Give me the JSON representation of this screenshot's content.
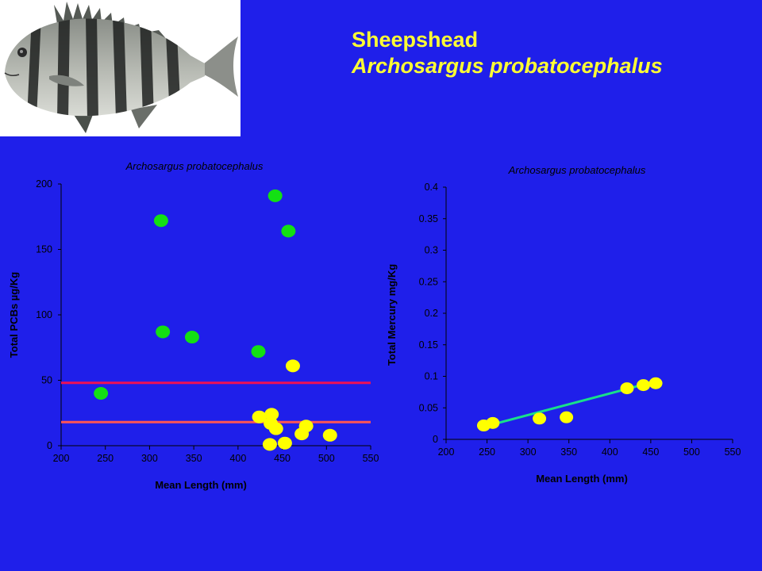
{
  "slide": {
    "title_common": "Sheepshead",
    "title_scientific": "Archosargus probatocephalus"
  },
  "colors": {
    "background": "#1f1fea",
    "title_text": "#ffff33",
    "green_point": "#13e013",
    "yellow_point": "#ffff00",
    "ref_line_upper": "#ee1155",
    "ref_line_lower": "#ff5555",
    "trend_line": "#19e08a"
  },
  "chart_data": [
    {
      "type": "scatter",
      "title": "Archosargus probatocephalus",
      "xlabel": "Mean Length (mm)",
      "ylabel": "Total PCBs µg/Kg",
      "xlim": [
        200,
        550
      ],
      "ylim": [
        0,
        200
      ],
      "xticks": [
        "200",
        "250",
        "300",
        "350",
        "400",
        "450",
        "500",
        "550"
      ],
      "yticks": [
        "0",
        "50",
        "100",
        "150",
        "200"
      ],
      "series": [
        {
          "color": "green",
          "points": [
            {
              "x": 245,
              "y": 40
            },
            {
              "x": 313,
              "y": 172
            },
            {
              "x": 315,
              "y": 87
            },
            {
              "x": 348,
              "y": 83
            },
            {
              "x": 423,
              "y": 72
            },
            {
              "x": 442,
              "y": 191
            },
            {
              "x": 457,
              "y": 164
            }
          ]
        },
        {
          "color": "yellow",
          "points": [
            {
              "x": 462,
              "y": 61
            },
            {
              "x": 424,
              "y": 22
            },
            {
              "x": 438,
              "y": 24
            },
            {
              "x": 437,
              "y": 17
            },
            {
              "x": 443,
              "y": 13
            },
            {
              "x": 477,
              "y": 15
            },
            {
              "x": 472,
              "y": 9
            },
            {
              "x": 504,
              "y": 8
            },
            {
              "x": 453,
              "y": 2
            },
            {
              "x": 436,
              "y": 1
            }
          ]
        }
      ],
      "reference_lines": [
        {
          "y": 48,
          "color": "upper"
        },
        {
          "y": 18,
          "color": "lower"
        }
      ]
    },
    {
      "type": "scatter",
      "title": "Archosargus probatocephalus",
      "xlabel": "Mean Length (mm)",
      "ylabel": "Total Mercury mg/Kg",
      "xlim": [
        200,
        550
      ],
      "ylim": [
        0,
        0.4
      ],
      "xticks": [
        "200",
        "250",
        "300",
        "350",
        "400",
        "450",
        "500",
        "550"
      ],
      "yticks": [
        "0",
        "0.05",
        "0.1",
        "0.15",
        "0.2",
        "0.25",
        "0.3",
        "0.35",
        "0.4"
      ],
      "series": [
        {
          "color": "yellow",
          "points": [
            {
              "x": 246,
              "y": 0.022
            },
            {
              "x": 257,
              "y": 0.026
            },
            {
              "x": 314,
              "y": 0.033
            },
            {
              "x": 347,
              "y": 0.035
            },
            {
              "x": 421,
              "y": 0.081
            },
            {
              "x": 441,
              "y": 0.086
            },
            {
              "x": 456,
              "y": 0.089
            }
          ]
        }
      ],
      "trend_line": {
        "x": [
          246,
          456
        ],
        "y": [
          0.02,
          0.092
        ]
      }
    }
  ]
}
